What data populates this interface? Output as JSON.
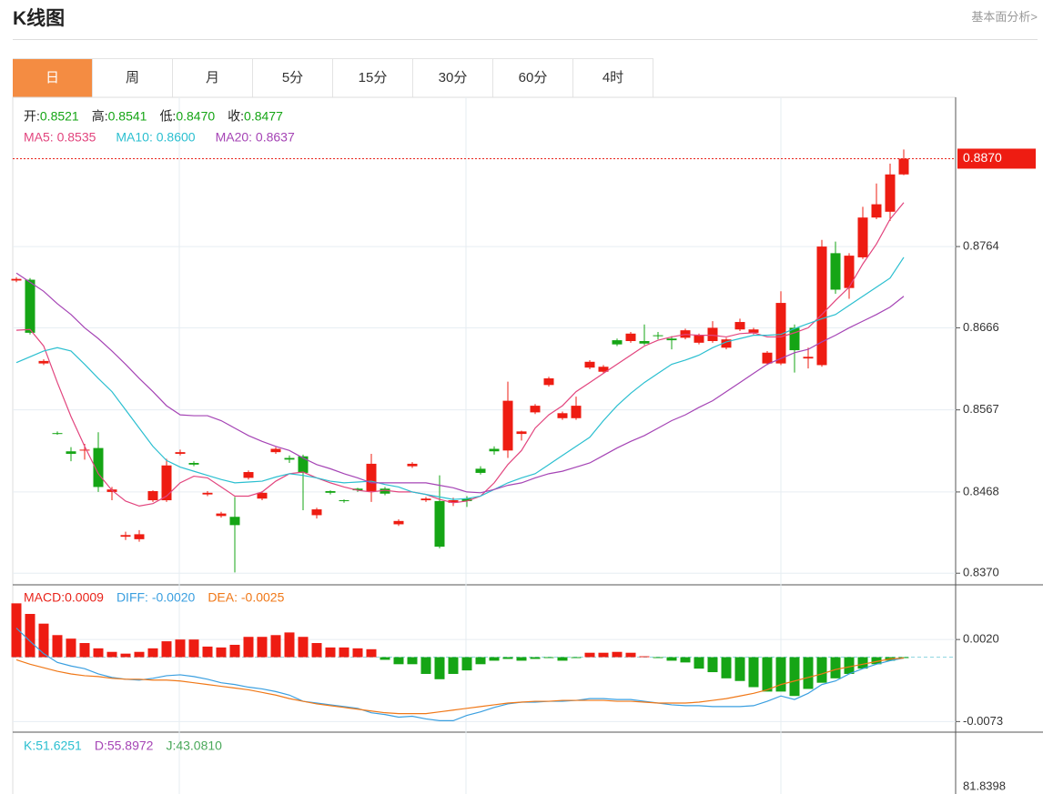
{
  "header": {
    "title": "K线图",
    "link": "基本面分析>"
  },
  "tabs": {
    "items": [
      "日",
      "周",
      "月",
      "5分",
      "15分",
      "30分",
      "60分",
      "4时"
    ],
    "active": 0
  },
  "chart_data": [
    {
      "type": "candlestick",
      "ohlc_legend": [
        {
          "label": "开:",
          "value": "0.8521"
        },
        {
          "label": "高:",
          "value": "0.8541"
        },
        {
          "label": "低:",
          "value": "0.8470"
        },
        {
          "label": "收:",
          "value": "0.8477"
        }
      ],
      "open": [
        0.8723,
        0.8724,
        0.8623,
        0.8539,
        0.8517,
        0.8518,
        0.8521,
        0.8468,
        0.8414,
        0.8411,
        0.8458,
        0.8458,
        0.8514,
        0.8503,
        0.8465,
        0.8439,
        0.8438,
        0.8485,
        0.846,
        0.8516,
        0.8509,
        0.8511,
        0.844,
        0.8469,
        0.8458,
        0.8472,
        0.8469,
        0.8472,
        0.8429,
        0.8499,
        0.8458,
        0.8457,
        0.8455,
        0.846,
        0.8496,
        0.852,
        0.8518,
        0.8538,
        0.8564,
        0.8597,
        0.8557,
        0.8557,
        0.8618,
        0.8613,
        0.8651,
        0.865,
        0.865,
        0.8657,
        0.8653,
        0.8654,
        0.8648,
        0.865,
        0.8642,
        0.8664,
        0.866,
        0.8623,
        0.8623,
        0.8666,
        0.8629,
        0.8621,
        0.8756,
        0.8714,
        0.8751,
        0.8799,
        0.8806,
        0.8851
      ],
      "high": [
        0.8727,
        0.8726,
        0.8628,
        0.8541,
        0.8522,
        0.8526,
        0.854,
        0.8474,
        0.842,
        0.8422,
        0.847,
        0.8508,
        0.8519,
        0.8505,
        0.8469,
        0.8444,
        0.8462,
        0.8494,
        0.8469,
        0.8522,
        0.8512,
        0.8513,
        0.8449,
        0.847,
        0.8459,
        0.8473,
        0.8514,
        0.8474,
        0.8435,
        0.8504,
        0.8462,
        0.8488,
        0.8461,
        0.8463,
        0.8499,
        0.8523,
        0.8601,
        0.8542,
        0.8574,
        0.8607,
        0.8565,
        0.8583,
        0.8627,
        0.8621,
        0.8653,
        0.8661,
        0.867,
        0.8661,
        0.8656,
        0.8665,
        0.8659,
        0.8674,
        0.8654,
        0.8677,
        0.8666,
        0.8638,
        0.871,
        0.867,
        0.8642,
        0.8772,
        0.877,
        0.8756,
        0.8812,
        0.884,
        0.8864,
        0.8881
      ],
      "low": [
        0.8721,
        0.8658,
        0.8621,
        0.8537,
        0.8505,
        0.8507,
        0.8468,
        0.8458,
        0.841,
        0.8408,
        0.8456,
        0.8456,
        0.8512,
        0.8499,
        0.8463,
        0.8437,
        0.8371,
        0.8483,
        0.8458,
        0.8514,
        0.8503,
        0.8446,
        0.8436,
        0.8465,
        0.8455,
        0.8468,
        0.8456,
        0.8464,
        0.8427,
        0.8497,
        0.8456,
        0.84,
        0.8451,
        0.845,
        0.8489,
        0.8513,
        0.8509,
        0.853,
        0.8562,
        0.8595,
        0.8555,
        0.8555,
        0.8616,
        0.8611,
        0.8644,
        0.8648,
        0.8645,
        0.8652,
        0.864,
        0.8652,
        0.8646,
        0.8648,
        0.864,
        0.8662,
        0.8658,
        0.8621,
        0.8621,
        0.8612,
        0.8617,
        0.8619,
        0.8707,
        0.8701,
        0.8749,
        0.8797,
        0.8795,
        0.885
      ],
      "close": [
        0.8725,
        0.866,
        0.8626,
        0.8538,
        0.8514,
        0.8519,
        0.8474,
        0.8471,
        0.8416,
        0.8417,
        0.8469,
        0.85,
        0.8516,
        0.8501,
        0.8467,
        0.8442,
        0.8428,
        0.8492,
        0.8467,
        0.852,
        0.8507,
        0.8491,
        0.8447,
        0.8467,
        0.8457,
        0.847,
        0.8502,
        0.8466,
        0.8433,
        0.8502,
        0.846,
        0.8402,
        0.8458,
        0.8457,
        0.8491,
        0.8517,
        0.8578,
        0.8541,
        0.8572,
        0.8605,
        0.8563,
        0.8572,
        0.8625,
        0.8619,
        0.8646,
        0.8659,
        0.8647,
        0.8656,
        0.8651,
        0.8663,
        0.8657,
        0.8666,
        0.8652,
        0.8673,
        0.8664,
        0.8636,
        0.8696,
        0.8639,
        0.8631,
        0.8764,
        0.8712,
        0.8753,
        0.8799,
        0.8815,
        0.8851,
        0.887
      ],
      "up_color": "#ee1c12",
      "down_color": "#15a515",
      "series": [
        {
          "legend": "MA5: 0.8535",
          "color": "#e2457e",
          "values": [
            0.8663,
            0.8664,
            0.8644,
            0.86,
            0.8559,
            0.8523,
            0.849,
            0.847,
            0.8457,
            0.8451,
            0.8454,
            0.8463,
            0.8479,
            0.8487,
            0.8485,
            0.8474,
            0.8463,
            0.8463,
            0.8468,
            0.8481,
            0.849,
            0.8492,
            0.8485,
            0.8479,
            0.8474,
            0.847,
            0.8468,
            0.847,
            0.8468,
            0.8468,
            0.8465,
            0.8459,
            0.8455,
            0.8457,
            0.8463,
            0.8479,
            0.8501,
            0.8518,
            0.8545,
            0.8561,
            0.8572,
            0.8589,
            0.86,
            0.8611,
            0.8622,
            0.8633,
            0.8644,
            0.8651,
            0.8655,
            0.8658,
            0.8657,
            0.8657,
            0.8655,
            0.8659,
            0.866,
            0.8655,
            0.8655,
            0.866,
            0.8666,
            0.8682,
            0.8699,
            0.8715,
            0.8743,
            0.8767,
            0.8797,
            0.8817
          ]
        },
        {
          "legend": "MA10: 0.8600",
          "color": "#2bbfd0",
          "values": [
            0.8624,
            0.8631,
            0.8638,
            0.8642,
            0.8638,
            0.8622,
            0.8605,
            0.8589,
            0.8567,
            0.8545,
            0.8523,
            0.8506,
            0.8498,
            0.8493,
            0.8488,
            0.8483,
            0.8479,
            0.848,
            0.8481,
            0.8486,
            0.849,
            0.8488,
            0.8485,
            0.8481,
            0.8479,
            0.848,
            0.8481,
            0.8477,
            0.8474,
            0.8468,
            0.8465,
            0.8462,
            0.8459,
            0.846,
            0.8463,
            0.8471,
            0.8479,
            0.8485,
            0.849,
            0.8501,
            0.8512,
            0.8523,
            0.8534,
            0.8554,
            0.8572,
            0.8587,
            0.86,
            0.8611,
            0.8622,
            0.8627,
            0.8633,
            0.8642,
            0.8649,
            0.8653,
            0.8657,
            0.8657,
            0.8658,
            0.8665,
            0.8671,
            0.8677,
            0.8682,
            0.8693,
            0.8704,
            0.8715,
            0.8726,
            0.8751
          ]
        },
        {
          "legend": "MA20: 0.8637",
          "color": "#a544b5",
          "values": [
            0.8732,
            0.8721,
            0.871,
            0.8695,
            0.8682,
            0.8666,
            0.8653,
            0.8638,
            0.8622,
            0.8605,
            0.8589,
            0.8572,
            0.8561,
            0.856,
            0.856,
            0.8554,
            0.8545,
            0.8536,
            0.8529,
            0.8523,
            0.8518,
            0.8509,
            0.8501,
            0.8496,
            0.849,
            0.8485,
            0.8479,
            0.8479,
            0.8479,
            0.8479,
            0.8479,
            0.8476,
            0.8473,
            0.8468,
            0.8467,
            0.8471,
            0.8476,
            0.8479,
            0.8485,
            0.849,
            0.8493,
            0.8498,
            0.8503,
            0.8512,
            0.8521,
            0.8529,
            0.8536,
            0.8545,
            0.8554,
            0.8561,
            0.857,
            0.8578,
            0.8589,
            0.86,
            0.8611,
            0.8622,
            0.8629,
            0.8636,
            0.864,
            0.8649,
            0.8657,
            0.8666,
            0.8674,
            0.8682,
            0.8691,
            0.8704
          ]
        }
      ],
      "ylim": [
        0.8356,
        0.8944
      ],
      "yticks": [
        {
          "value": 0.837,
          "label": "0.8370"
        },
        0.8468,
        0.8567,
        0.8666,
        0.8764
      ],
      "last_price": {
        "value": 0.887,
        "label": "0.8870"
      },
      "grid": true
    },
    {
      "type": "macd",
      "legend": [
        {
          "text": "MACD:0.0009",
          "color": "#e8231a"
        },
        {
          "text": "DIFF: -0.0020",
          "color": "#3a9fe0"
        },
        {
          "text": "DEA: -0.0025",
          "color": "#f07818"
        }
      ],
      "macd": [
        0.0061,
        0.0049,
        0.0038,
        0.0025,
        0.0021,
        0.0016,
        0.001,
        0.0006,
        0.0004,
        0.0006,
        0.001,
        0.0018,
        0.002,
        0.002,
        0.0012,
        0.0011,
        0.0014,
        0.0023,
        0.0023,
        0.0025,
        0.0028,
        0.0023,
        0.0016,
        0.0011,
        0.0011,
        0.001,
        0.0009,
        -0.0003,
        -0.0008,
        -0.0008,
        -0.0019,
        -0.0025,
        -0.0019,
        -0.0015,
        -0.0008,
        -0.0004,
        -0.0002,
        -0.0004,
        -0.0002,
        -0.0001,
        -0.0004,
        -0.0001,
        0.0005,
        0.0005,
        0.0006,
        0.0005,
        0.0001,
        -0.0001,
        -0.0004,
        -0.0006,
        -0.0013,
        -0.0017,
        -0.0024,
        -0.0027,
        -0.0034,
        -0.0039,
        -0.0039,
        -0.0044,
        -0.0036,
        -0.0029,
        -0.0024,
        -0.0019,
        -0.0013,
        -0.0008,
        -0.0004,
        -0.0001
      ],
      "series": [
        {
          "color": "#3a9fe0",
          "values": [
            0.0033,
            0.0018,
            0.0004,
            -0.0006,
            -0.001,
            -0.0013,
            -0.0019,
            -0.0023,
            -0.0025,
            -0.0026,
            -0.0024,
            -0.0021,
            -0.002,
            -0.0022,
            -0.0025,
            -0.0029,
            -0.0031,
            -0.0034,
            -0.0036,
            -0.0039,
            -0.0043,
            -0.005,
            -0.0052,
            -0.0054,
            -0.0056,
            -0.0058,
            -0.0063,
            -0.0065,
            -0.0068,
            -0.0067,
            -0.007,
            -0.0072,
            -0.0072,
            -0.0066,
            -0.0062,
            -0.0057,
            -0.0053,
            -0.0051,
            -0.0051,
            -0.005,
            -0.005,
            -0.0049,
            -0.0047,
            -0.0047,
            -0.0048,
            -0.0048,
            -0.005,
            -0.0052,
            -0.0054,
            -0.0055,
            -0.0055,
            -0.0056,
            -0.0056,
            -0.0056,
            -0.0055,
            -0.005,
            -0.0044,
            -0.0048,
            -0.0041,
            -0.0031,
            -0.0027,
            -0.0019,
            -0.0013,
            -0.0008,
            -0.0004,
            -0.0001
          ]
        },
        {
          "color": "#f07818",
          "values": [
            -0.0003,
            -0.0008,
            -0.0012,
            -0.0016,
            -0.0019,
            -0.0021,
            -0.0022,
            -0.0024,
            -0.0025,
            -0.0025,
            -0.0026,
            -0.0026,
            -0.0027,
            -0.0029,
            -0.0031,
            -0.0033,
            -0.0035,
            -0.0037,
            -0.004,
            -0.0043,
            -0.0047,
            -0.005,
            -0.0053,
            -0.0055,
            -0.0057,
            -0.0059,
            -0.0061,
            -0.0063,
            -0.0064,
            -0.0064,
            -0.0064,
            -0.0062,
            -0.006,
            -0.0058,
            -0.0056,
            -0.0054,
            -0.0052,
            -0.0051,
            -0.005,
            -0.005,
            -0.0049,
            -0.0049,
            -0.0049,
            -0.0049,
            -0.005,
            -0.005,
            -0.0051,
            -0.0052,
            -0.0052,
            -0.0052,
            -0.0051,
            -0.0049,
            -0.0047,
            -0.0044,
            -0.0041,
            -0.0037,
            -0.0031,
            -0.0027,
            -0.0023,
            -0.0019,
            -0.0014,
            -0.0011,
            -0.0008,
            -0.0005,
            -0.0002,
            -0.0001
          ]
        }
      ],
      "ylim": [
        -0.0085,
        0.0082
      ],
      "yticks": [
        {
          "value": -0.0073,
          "label": "-0.0073"
        },
        {
          "value": 0.002,
          "label": "0.0020"
        }
      ],
      "grid": true
    },
    {
      "type": "kdj",
      "legend": [
        {
          "text": "K:51.6251",
          "color": "#2bbfd0"
        },
        {
          "text": "D:55.8972",
          "color": "#a544b5"
        },
        {
          "text": "J:43.0810",
          "color": "#4aa85a"
        }
      ],
      "yticks": [
        81.8398
      ]
    }
  ]
}
